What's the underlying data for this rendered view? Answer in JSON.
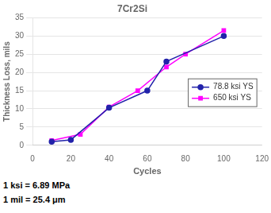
{
  "chart_data": {
    "type": "line",
    "title": "7Cr2Si",
    "xlabel": "Cycles",
    "ylabel": "Thickness Loss, mils",
    "xlim": [
      0,
      120
    ],
    "ylim": [
      0,
      35
    ],
    "xticks": [
      0,
      20,
      40,
      60,
      80,
      100,
      120
    ],
    "yticks": [
      0,
      5,
      10,
      15,
      20,
      25,
      30,
      35
    ],
    "series": [
      {
        "name": "78.8 ksi YS",
        "x": [
          10,
          20,
          40,
          60,
          70,
          100
        ],
        "values": [
          1.0,
          1.5,
          10.3,
          15.0,
          23.0,
          30.0
        ],
        "color": "#2222aa",
        "marker": "circle"
      },
      {
        "name": "650 ksi YS",
        "x": [
          10,
          25,
          40,
          55,
          70,
          80,
          100
        ],
        "values": [
          1.3,
          3.0,
          10.5,
          15.0,
          21.5,
          25.0,
          31.5
        ],
        "color": "#ff00ff",
        "marker": "square"
      }
    ],
    "annotations": [
      "1 ksi = 6.89 MPa",
      "1 mil = 25.4 μm"
    ],
    "grid": "y",
    "legend": "lower right"
  }
}
